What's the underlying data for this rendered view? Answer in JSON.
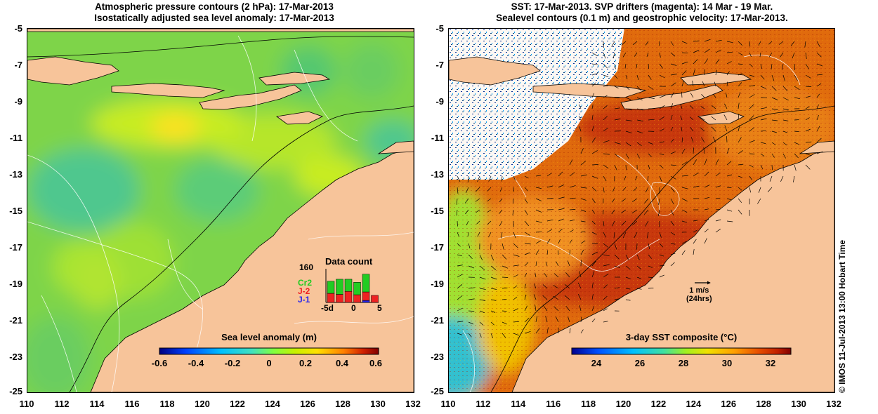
{
  "left_panel": {
    "title_line1": "Atmospheric pressure contours (2 hPa): 17-Mar-2013",
    "title_line2": "Isostatically adjusted sea level anomaly: 17-Mar-2013",
    "colorbar": {
      "title": "Sea level anomaly (m)",
      "ticks": [
        "-0.6",
        "-0.4",
        "-0.2",
        "0",
        "0.2",
        "0.4",
        "0.6"
      ]
    },
    "data_count": {
      "title": "Data count",
      "y_max": "160",
      "series": [
        {
          "name": "Cr2",
          "color": "#22cc22"
        },
        {
          "name": "J-2",
          "color": "#ee2222"
        },
        {
          "name": "J-1",
          "color": "#2222ee"
        }
      ],
      "x_ticks": [
        "-5d",
        "0",
        "5"
      ],
      "bars": [
        {
          "day": -5,
          "red": 45,
          "green": 60,
          "blue": 0
        },
        {
          "day": -3,
          "red": 40,
          "green": 75,
          "blue": 0
        },
        {
          "day": -1,
          "red": 55,
          "green": 60,
          "blue": 0
        },
        {
          "day": 1,
          "red": 38,
          "green": 62,
          "blue": 0
        },
        {
          "day": 3,
          "red": 42,
          "green": 88,
          "blue": 10
        },
        {
          "day": 5,
          "red": 35,
          "green": 0,
          "blue": 0
        }
      ]
    }
  },
  "right_panel": {
    "title_line1": "SST: 17-Mar-2013. SVP drifters (magenta): 14 Mar - 19 Mar.",
    "title_line2": "Sealevel contours (0.1 m) and geostrophic velocity: 17-Mar-2013.",
    "colorbar": {
      "title": "3-day SST composite (°C)",
      "ticks": [
        "24",
        "26",
        "28",
        "30",
        "32"
      ]
    },
    "velocity_scale": {
      "label1": "1 m/s",
      "label2": "(24hrs)"
    }
  },
  "axes": {
    "y_ticks": [
      "-5",
      "-7",
      "-9",
      "-11",
      "-13",
      "-15",
      "-17",
      "-19",
      "-21",
      "-23",
      "-25"
    ],
    "x_ticks": [
      "110",
      "112",
      "114",
      "116",
      "118",
      "120",
      "122",
      "124",
      "126",
      "128",
      "130",
      "132"
    ]
  },
  "credit": "© IMOS 11-Jul-2013 13:00 Hobart Time",
  "colors": {
    "land": "#f7c49a",
    "sla_colormap": [
      "#000080",
      "#0040ff",
      "#00c0ff",
      "#40e0c0",
      "#80ff40",
      "#c8f000",
      "#ffe000",
      "#ff8000",
      "#d02000",
      "#800000"
    ],
    "sst_colormap": [
      "#000090",
      "#0050ff",
      "#00c0ff",
      "#40e0a0",
      "#a0f020",
      "#f0e000",
      "#ffa000",
      "#e85000",
      "#c02000",
      "#800000"
    ]
  }
}
